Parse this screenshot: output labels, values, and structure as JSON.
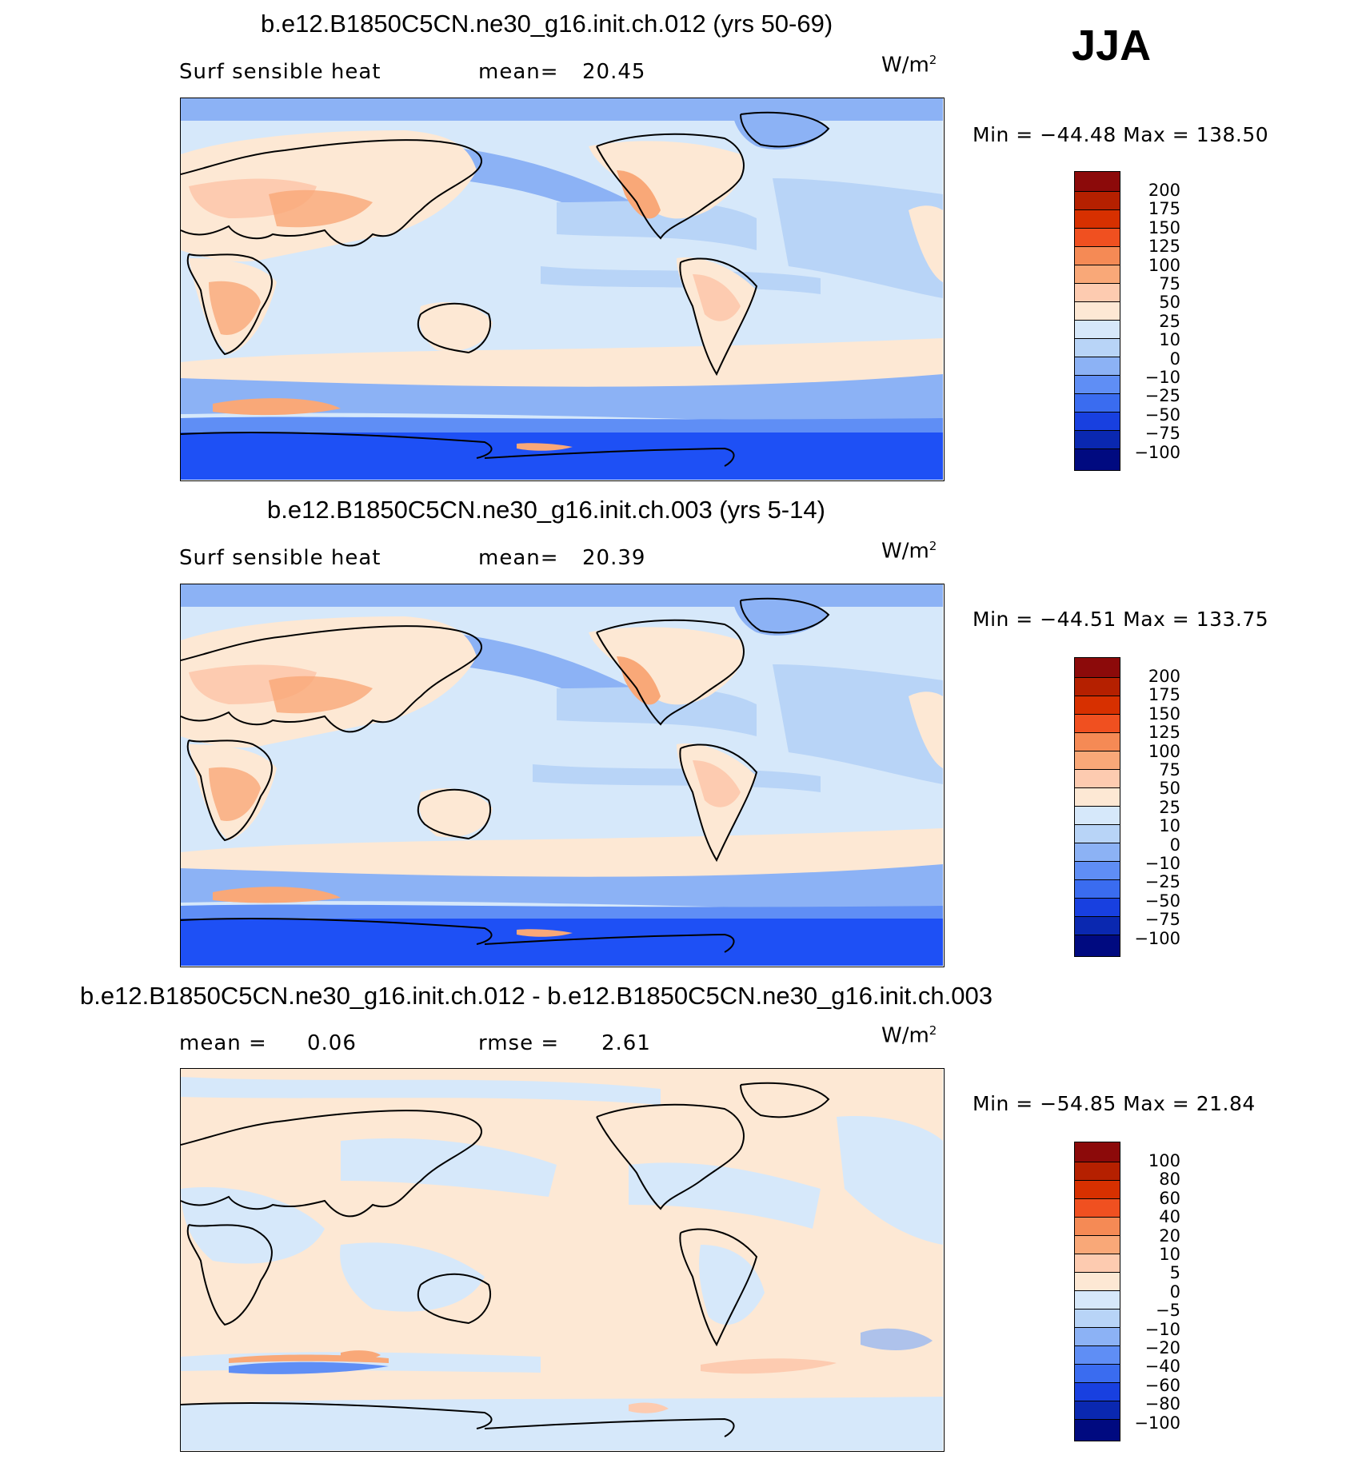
{
  "season": "JJA",
  "panels": [
    {
      "title": "b.e12.B1850C5CN.ne30_g16.init.ch.012 (yrs 50-69)",
      "left_label": "Surf sensible heat",
      "mid_label": "mean=",
      "mid_value": "20.45",
      "units": "W/m",
      "units_sup": "2",
      "minmax": "Min = −44.48  Max = 138.50",
      "levels": [
        "200",
        "175",
        "150",
        "125",
        "100",
        "75",
        "50",
        "25",
        "10",
        "0",
        "−10",
        "−25",
        "−50",
        "−75",
        "−100"
      ]
    },
    {
      "title": "b.e12.B1850C5CN.ne30_g16.init.ch.003 (yrs 5-14)",
      "left_label": "Surf sensible heat",
      "mid_label": "mean=",
      "mid_value": "20.39",
      "units": "W/m",
      "units_sup": "2",
      "minmax": "Min = −44.51  Max = 133.75",
      "levels": [
        "200",
        "175",
        "150",
        "125",
        "100",
        "75",
        "50",
        "25",
        "10",
        "0",
        "−10",
        "−25",
        "−50",
        "−75",
        "−100"
      ]
    },
    {
      "title": "b.e12.B1850C5CN.ne30_g16.init.ch.012 - b.e12.B1850C5CN.ne30_g16.init.ch.003",
      "left_label": "mean =",
      "left_value": "0.06",
      "mid_label": "rmse =",
      "mid_value": "2.61",
      "units": "W/m",
      "units_sup": "2",
      "minmax": "Min = −54.85  Max =  21.84",
      "levels": [
        "100",
        "80",
        "60",
        "40",
        "20",
        "10",
        "5",
        "0",
        "−5",
        "−10",
        "−20",
        "−40",
        "−60",
        "−80",
        "−100"
      ]
    }
  ],
  "colorbar_colors": [
    "#8c0a0a",
    "#b52000",
    "#d73000",
    "#f05020",
    "#f58a55",
    "#f9a878",
    "#fdcbb0",
    "#fde8d4",
    "#d6e8fa",
    "#b8d4f7",
    "#8cb2f5",
    "#5f8ef5",
    "#3a6cf0",
    "#1840e0",
    "#0a28b0",
    "#000a80"
  ],
  "map_colors": {
    "ocean_base": "#d6e8fa",
    "ocean_mid": "#b8d4f7",
    "ocean_cold": "#8cb2f5",
    "antarctic": "#1e50f5",
    "antarctic_edge": "#5f8ef5",
    "land_warm": "#fde8d4",
    "land_hot": "#fdcbb0",
    "land_hotter": "#f9a878",
    "diff_pos": "#fde8d4",
    "diff_neg": "#d6e8fa"
  }
}
